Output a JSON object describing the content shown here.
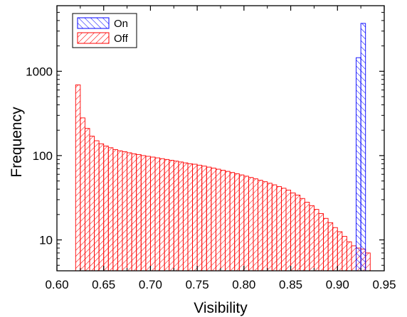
{
  "chart_data": {
    "type": "bar",
    "title": "",
    "xlabel": "Visibility",
    "ylabel": "Frequency",
    "x_scale": "linear",
    "y_scale": "log",
    "xlim": [
      0.6,
      0.95
    ],
    "ylim": [
      4.3,
      6000
    ],
    "bin_width": 0.005,
    "x_ticks": [
      0.6,
      0.65,
      0.7,
      0.75,
      0.8,
      0.85,
      0.9,
      0.95
    ],
    "x_tick_labels": [
      "0.60",
      "0.65",
      "0.70",
      "0.75",
      "0.80",
      "0.85",
      "0.90",
      "0.95"
    ],
    "y_ticks": [
      10,
      100,
      1000
    ],
    "y_tick_labels": [
      "10",
      "100",
      "1000"
    ],
    "legend": {
      "position": "top-left",
      "entries": [
        "On",
        "Off"
      ]
    },
    "series": [
      {
        "name": "On",
        "color": "#0000ff",
        "pattern": "hatch",
        "x": [
          0.92,
          0.925
        ],
        "values": [
          1450,
          3700
        ]
      },
      {
        "name": "Off",
        "color": "#ff0000",
        "pattern": "hatch",
        "x": [
          0.62,
          0.625,
          0.63,
          0.635,
          0.64,
          0.645,
          0.65,
          0.655,
          0.66,
          0.665,
          0.67,
          0.675,
          0.68,
          0.685,
          0.69,
          0.695,
          0.7,
          0.705,
          0.71,
          0.715,
          0.72,
          0.725,
          0.73,
          0.735,
          0.74,
          0.745,
          0.75,
          0.755,
          0.76,
          0.765,
          0.77,
          0.775,
          0.78,
          0.785,
          0.79,
          0.795,
          0.8,
          0.805,
          0.81,
          0.815,
          0.82,
          0.825,
          0.83,
          0.835,
          0.84,
          0.845,
          0.85,
          0.855,
          0.86,
          0.865,
          0.87,
          0.875,
          0.88,
          0.885,
          0.89,
          0.895,
          0.9,
          0.905,
          0.91,
          0.915,
          0.92,
          0.925,
          0.93
        ],
        "values": [
          690,
          280,
          210,
          170,
          150,
          138,
          130,
          124,
          118,
          114,
          111,
          108,
          105,
          103,
          100,
          98,
          96,
          94,
          92,
          90,
          88,
          86,
          84,
          82,
          80,
          79,
          77,
          75,
          73,
          71,
          69,
          67,
          65,
          63,
          61,
          59,
          57,
          55,
          53,
          51,
          49,
          47,
          45,
          43,
          41,
          39,
          36,
          34,
          31,
          28,
          25.5,
          23,
          20.5,
          18,
          16,
          14,
          12.5,
          11,
          9.5,
          8.5,
          8,
          7.8,
          7
        ]
      }
    ]
  }
}
